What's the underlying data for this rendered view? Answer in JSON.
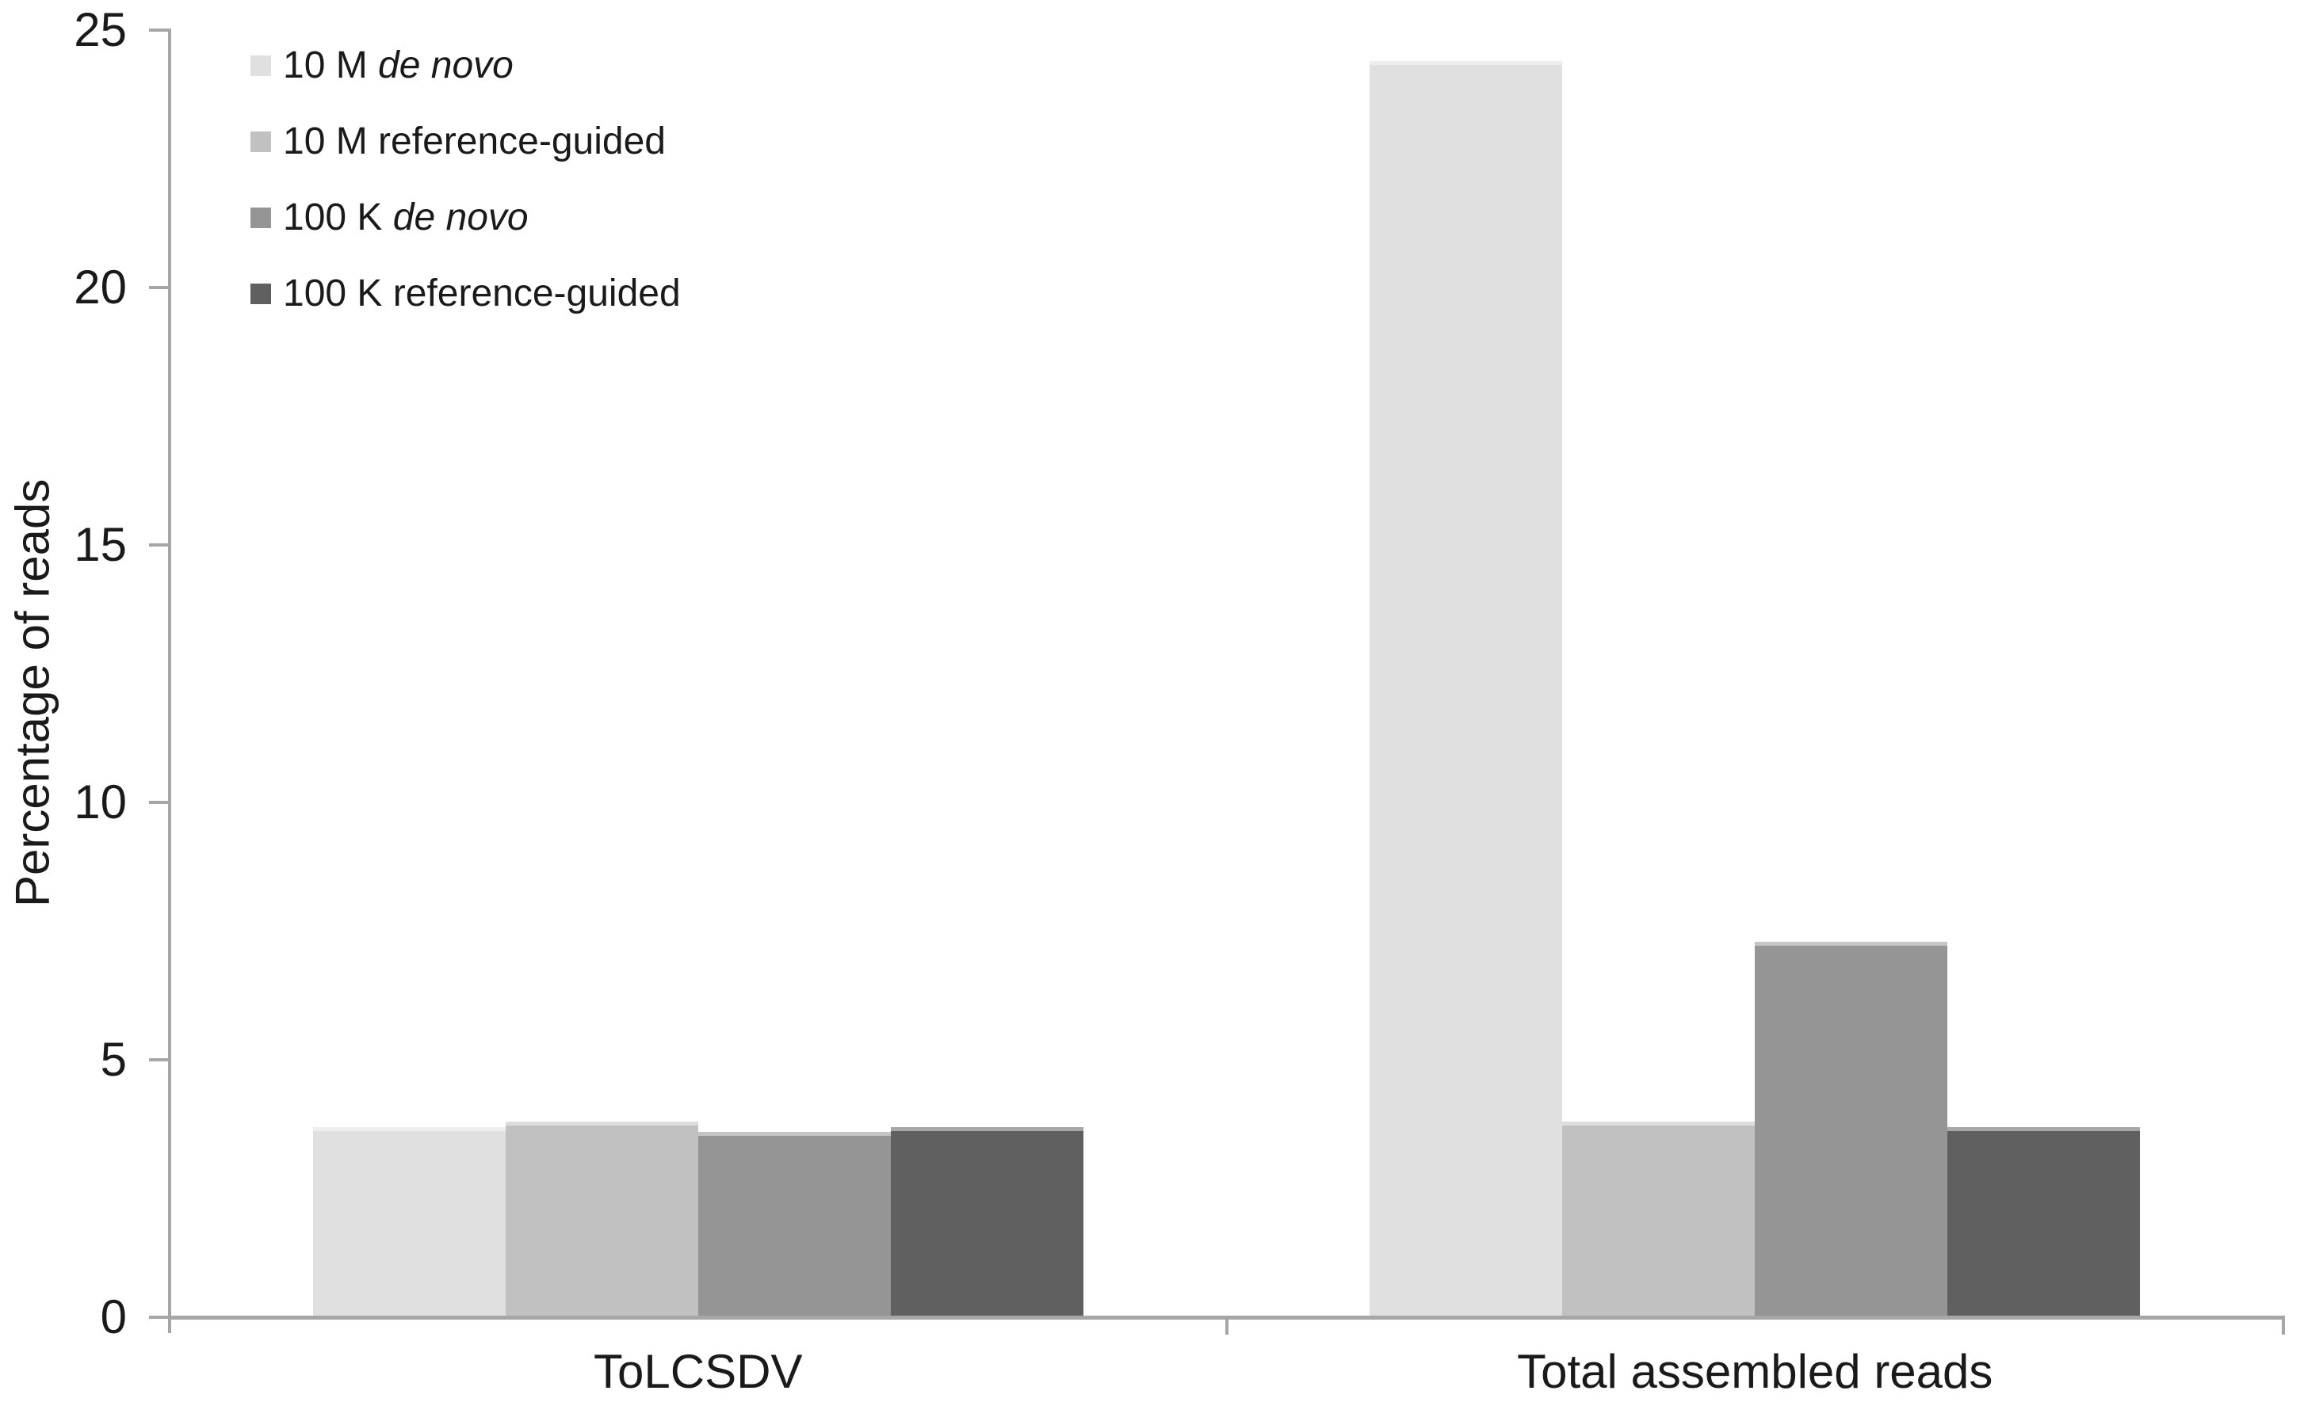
{
  "chart_data": {
    "type": "bar",
    "title": "",
    "categories": [
      "ToLCSDV",
      "Total assembled reads"
    ],
    "series": [
      {
        "name": "10 M de novo",
        "name_prefix": "10 M ",
        "name_italic": "de novo",
        "color": "#e0e0e0",
        "values": [
          3.7,
          24.4
        ]
      },
      {
        "name": "10 M reference-guided",
        "name_prefix": "10 M reference-guided",
        "name_italic": "",
        "color": "#c1c1c1",
        "values": [
          3.8,
          3.8
        ]
      },
      {
        "name": "100 K de novo",
        "name_prefix": "100 K ",
        "name_italic": "de novo",
        "color": "#959595",
        "values": [
          3.6,
          7.3
        ]
      },
      {
        "name": "100 K reference-guided",
        "name_prefix": "100 K reference-guided",
        "name_italic": "",
        "color": "#606060",
        "values": [
          3.7,
          3.7
        ]
      }
    ],
    "xlabel": "",
    "ylabel": "Percentage of reads",
    "ylim": [
      0,
      25
    ],
    "yticks": [
      0,
      5,
      10,
      15,
      20,
      25
    ],
    "grid": false,
    "legend_position": "top-left",
    "axis_color": "#a6a6a6",
    "text_color": "#1a1a1a"
  }
}
